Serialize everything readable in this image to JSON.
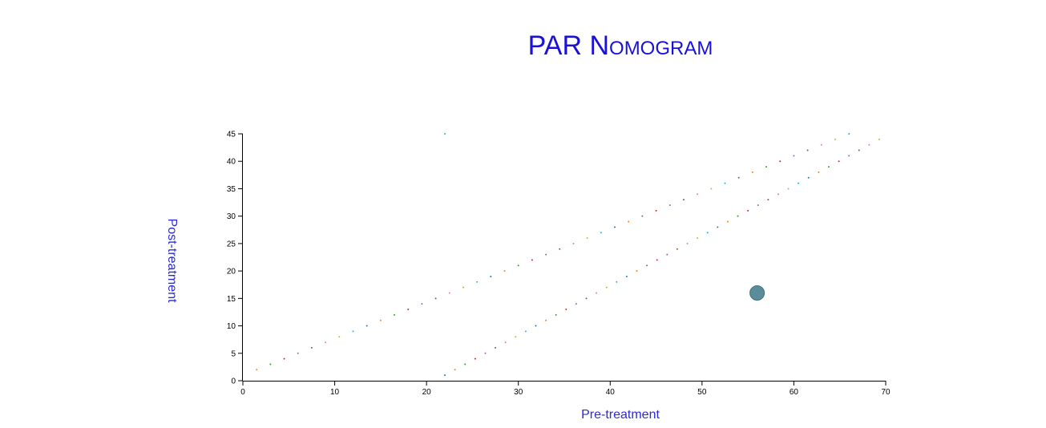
{
  "chart_data": {
    "type": "scatter",
    "title": "PAR Nomogram",
    "xlabel": "Pre-treatment",
    "ylabel": "Post-treatment",
    "xlim": [
      0,
      70
    ],
    "ylim": [
      0,
      45
    ],
    "x_ticks": [
      "0",
      "10",
      "20",
      "30",
      "40",
      "50",
      "60",
      "70"
    ],
    "y_ticks": [
      "0",
      "5",
      "10",
      "15",
      "20",
      "25",
      "30",
      "35",
      "40",
      "45"
    ],
    "grid": false,
    "series": [
      {
        "line": "upper",
        "points": [
          [
            1.5,
            2
          ],
          [
            3,
            3
          ],
          [
            4.5,
            4
          ],
          [
            6,
            5
          ],
          [
            7.5,
            6
          ],
          [
            9,
            7
          ],
          [
            10.5,
            8
          ],
          [
            12,
            9
          ],
          [
            13.5,
            10
          ],
          [
            15,
            11
          ],
          [
            16.5,
            12
          ],
          [
            18,
            13
          ],
          [
            19.5,
            14
          ],
          [
            21,
            15
          ],
          [
            22.5,
            16
          ],
          [
            24,
            17
          ],
          [
            25.5,
            18
          ],
          [
            27,
            19
          ],
          [
            28.5,
            20
          ],
          [
            30,
            21
          ],
          [
            31.5,
            22
          ],
          [
            33,
            23
          ],
          [
            34.5,
            24
          ],
          [
            36,
            25
          ],
          [
            37.5,
            26
          ],
          [
            39,
            27
          ],
          [
            40.5,
            28
          ],
          [
            42,
            29
          ],
          [
            43.5,
            30
          ],
          [
            45,
            31
          ],
          [
            46.5,
            32
          ],
          [
            48,
            33
          ],
          [
            49.5,
            34
          ],
          [
            51,
            35
          ],
          [
            52.5,
            36
          ],
          [
            54,
            37
          ],
          [
            55.5,
            38
          ],
          [
            57,
            39
          ],
          [
            58.5,
            40
          ],
          [
            60,
            41
          ],
          [
            61.5,
            42
          ],
          [
            63,
            43
          ],
          [
            64.5,
            44
          ],
          [
            66,
            45
          ]
        ]
      },
      {
        "line": "lower",
        "points": [
          [
            22,
            1
          ],
          [
            23.1,
            2
          ],
          [
            24.2,
            3
          ],
          [
            25.3,
            4
          ],
          [
            26.4,
            5
          ],
          [
            27.5,
            6
          ],
          [
            28.6,
            7
          ],
          [
            29.7,
            8
          ],
          [
            30.8,
            9
          ],
          [
            31.9,
            10
          ],
          [
            33,
            11
          ],
          [
            34.1,
            12
          ],
          [
            35.2,
            13
          ],
          [
            36.3,
            14
          ],
          [
            37.4,
            15
          ],
          [
            38.5,
            16
          ],
          [
            39.6,
            17
          ],
          [
            40.7,
            18
          ],
          [
            41.8,
            19
          ],
          [
            42.9,
            20
          ],
          [
            44,
            21
          ],
          [
            45.1,
            22
          ],
          [
            46.2,
            23
          ],
          [
            47.3,
            24
          ],
          [
            48.4,
            25
          ],
          [
            49.5,
            26
          ],
          [
            50.6,
            27
          ],
          [
            51.7,
            28
          ],
          [
            52.8,
            29
          ],
          [
            53.9,
            30
          ],
          [
            55,
            31
          ],
          [
            56.1,
            32
          ],
          [
            57.2,
            33
          ],
          [
            58.3,
            34
          ],
          [
            59.4,
            35
          ],
          [
            60.5,
            36
          ],
          [
            61.6,
            37
          ],
          [
            62.7,
            38
          ],
          [
            63.8,
            39
          ],
          [
            64.9,
            40
          ],
          [
            66,
            41
          ],
          [
            67.1,
            42
          ],
          [
            68.2,
            43
          ],
          [
            69.3,
            44
          ]
        ]
      },
      {
        "line": "stray",
        "points": [
          [
            22,
            45
          ]
        ]
      }
    ],
    "dot_colors": [
      "#ff7f0e",
      "#2ca02c",
      "#d62728",
      "#9467bd",
      "#8c564b",
      "#e377c2",
      "#bcbd22",
      "#17becf",
      "#1f77b4"
    ],
    "highlight_point": {
      "x": 56,
      "y": 16,
      "color": "#5b8c9a",
      "stroke": "#3d6f80"
    }
  }
}
